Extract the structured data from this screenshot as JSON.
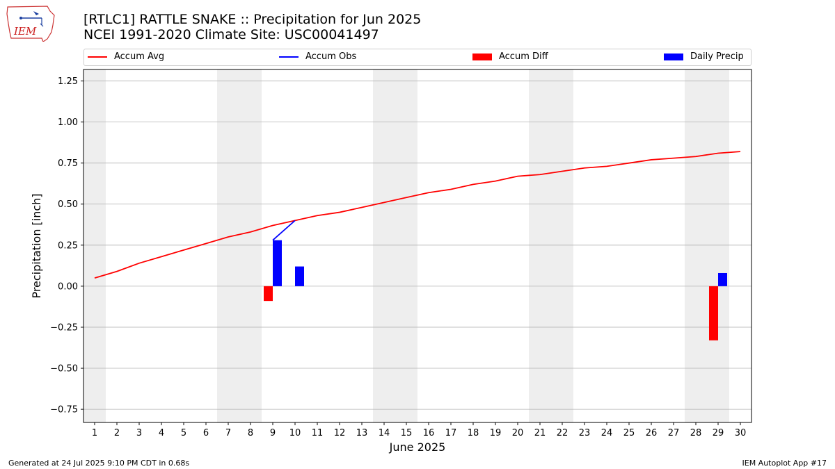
{
  "header": {
    "title_line1": "[RTLC1] RATTLE SNAKE :: Precipitation for Jun 2025",
    "title_line2": "NCEI 1991-2020 Climate Site: USC00041497",
    "logo_text": "IEM"
  },
  "legend": {
    "items": [
      {
        "label": "Accum Avg",
        "kind": "line",
        "color": "#ff0000"
      },
      {
        "label": "Accum Obs",
        "kind": "line",
        "color": "#0000ff"
      },
      {
        "label": "Accum Diff",
        "kind": "bar",
        "color": "#ff0000"
      },
      {
        "label": "Daily Precip",
        "kind": "bar",
        "color": "#0000ff"
      }
    ]
  },
  "footer": {
    "generated": "Generated at 24 Jul 2025 9:10 PM CDT in 0.68s",
    "app": "IEM Autoplot App #17"
  },
  "chart_data": {
    "type": "line",
    "xlabel": "June 2025",
    "ylabel": "Precipitation [inch]",
    "xlim": [
      0.5,
      30.5
    ],
    "ylim": [
      -0.83,
      1.32
    ],
    "x_ticks": [
      1,
      2,
      3,
      4,
      5,
      6,
      7,
      8,
      9,
      10,
      11,
      12,
      13,
      14,
      15,
      16,
      17,
      18,
      19,
      20,
      21,
      22,
      23,
      24,
      25,
      26,
      27,
      28,
      29,
      30
    ],
    "y_ticks": [
      -0.75,
      -0.5,
      -0.25,
      0.0,
      0.25,
      0.5,
      0.75,
      1.0,
      1.25
    ],
    "y_tick_labels": [
      "−0.75",
      "−0.50",
      "−0.25",
      "0.00",
      "0.25",
      "0.50",
      "0.75",
      "1.00",
      "1.25"
    ],
    "grid": "horizontal",
    "weekend_bands": [
      [
        0.5,
        1.5
      ],
      [
        6.5,
        8.5
      ],
      [
        13.5,
        15.5
      ],
      [
        20.5,
        22.5
      ],
      [
        27.5,
        29.5
      ]
    ],
    "colors": {
      "avg": "#ff0000",
      "obs": "#0000ff",
      "diff": "#ff0000",
      "daily": "#0000ff",
      "band": "#eeeeee",
      "grid": "#b0b0b0"
    },
    "series": [
      {
        "name": "Accum Avg",
        "kind": "line",
        "x": [
          1,
          2,
          3,
          4,
          5,
          6,
          7,
          8,
          9,
          10,
          11,
          12,
          13,
          14,
          15,
          16,
          17,
          18,
          19,
          20,
          21,
          22,
          23,
          24,
          25,
          26,
          27,
          28,
          29,
          30
        ],
        "values": [
          0.05,
          0.09,
          0.14,
          0.18,
          0.22,
          0.26,
          0.3,
          0.33,
          0.37,
          0.4,
          0.43,
          0.45,
          0.48,
          0.51,
          0.54,
          0.57,
          0.59,
          0.62,
          0.64,
          0.67,
          0.68,
          0.7,
          0.72,
          0.73,
          0.75,
          0.77,
          0.78,
          0.79,
          0.81,
          0.82
        ]
      },
      {
        "name": "Accum Obs",
        "kind": "line",
        "x": [
          9,
          10
        ],
        "values": [
          0.28,
          0.4
        ]
      },
      {
        "name": "Accum Diff",
        "kind": "bar",
        "x": [
          9,
          29
        ],
        "values": [
          -0.09,
          -0.33
        ]
      },
      {
        "name": "Daily Precip",
        "kind": "bar",
        "x": [
          9,
          10,
          29
        ],
        "values": [
          0.28,
          0.12,
          0.08
        ]
      }
    ]
  }
}
